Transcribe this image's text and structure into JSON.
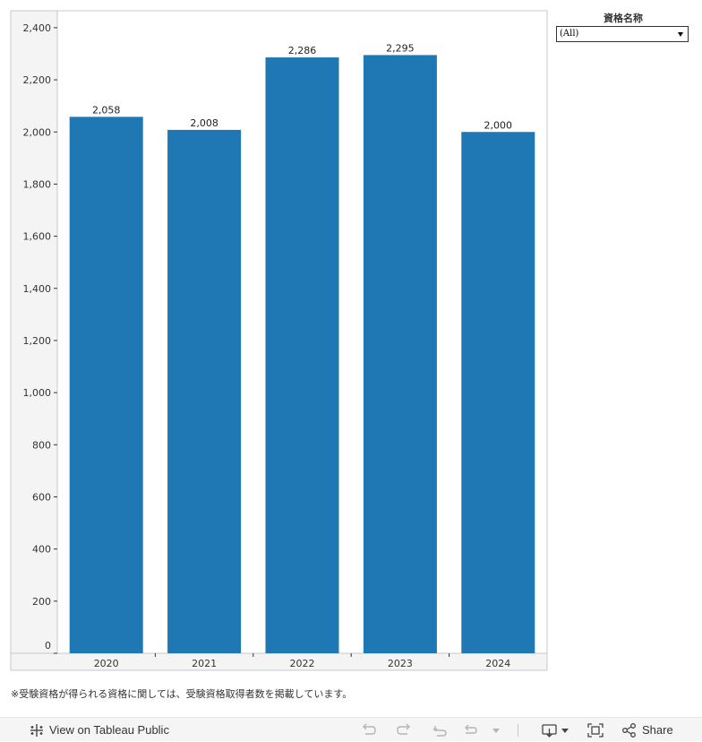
{
  "chart_data": {
    "type": "bar",
    "categories": [
      "2020",
      "2021",
      "2022",
      "2023",
      "2024"
    ],
    "values": [
      2058,
      2008,
      2286,
      2295,
      2000
    ],
    "data_labels": [
      "2,058",
      "2,008",
      "2,286",
      "2,295",
      "2,000"
    ],
    "y_ticks": [
      0,
      200,
      400,
      600,
      800,
      1000,
      1200,
      1400,
      1600,
      1800,
      2000,
      2200,
      2400
    ],
    "y_tick_labels": [
      "0",
      "200",
      "400",
      "600",
      "800",
      "1,000",
      "1,200",
      "1,400",
      "1,600",
      "1,800",
      "2,000",
      "2,200",
      "2,400"
    ],
    "ylim": [
      0,
      2465
    ],
    "bar_color": "#1f77b4",
    "grid": false,
    "title": "",
    "xlabel": "",
    "ylabel": ""
  },
  "filter": {
    "title": "資格名称",
    "selected": "(All)"
  },
  "footnote": "※受験資格が得られる資格に関しては、受験資格取得者数を掲載しています。",
  "toolbar": {
    "view_label": "View on Tableau Public",
    "share_label": "Share"
  }
}
